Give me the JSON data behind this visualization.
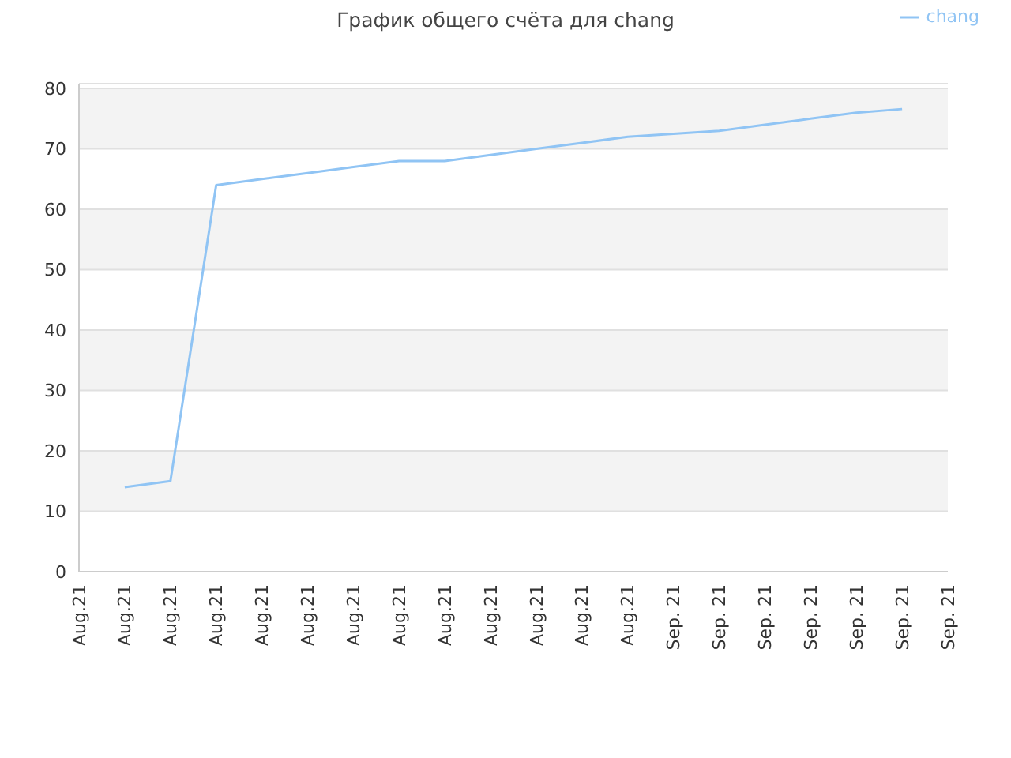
{
  "chart_data": {
    "type": "line",
    "title": "График общего счёта для chang",
    "categories": [
      "Aug.21",
      "Aug.21",
      "Aug.21",
      "Aug.21",
      "Aug.21",
      "Aug.21",
      "Aug.21",
      "Aug.21",
      "Aug.21",
      "Aug.21",
      "Aug.21",
      "Aug.21",
      "Aug.21",
      "Sep. 21",
      "Sep. 21",
      "Sep. 21",
      "Sep. 21",
      "Sep. 21",
      "Sep. 21",
      "Sep. 21"
    ],
    "series": [
      {
        "name": "chang",
        "color": "#90c4f4",
        "values": [
          null,
          14,
          15,
          64,
          65,
          66,
          67,
          68,
          68,
          69,
          70,
          71,
          72,
          72.5,
          73,
          74,
          75,
          76,
          76.6,
          null
        ]
      }
    ],
    "ylim": [
      0,
      80.8
    ],
    "yticks": [
      0,
      10,
      20,
      30,
      40,
      50,
      60,
      70,
      80
    ],
    "grid": "y",
    "legend": "top right",
    "marker": "none",
    "line_style": "solid"
  }
}
